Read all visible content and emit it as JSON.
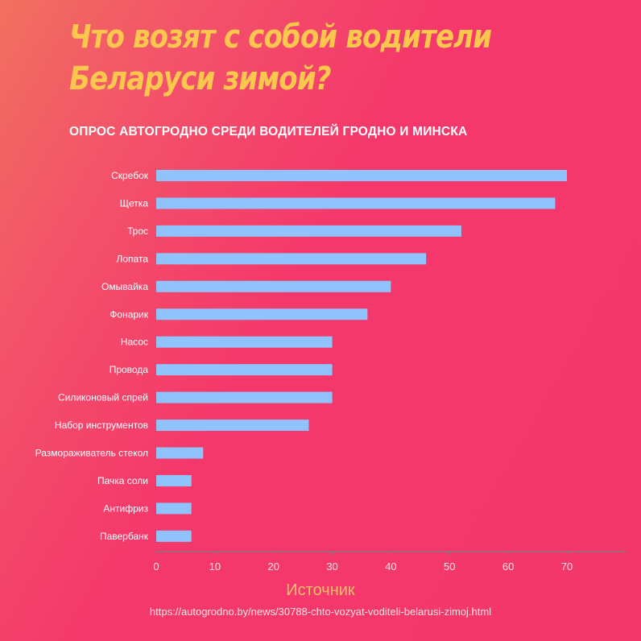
{
  "title": "Что возят с собой водители Беларуси зимой?",
  "source": {
    "heading": "Источник",
    "url": "https://autogrodno.by/news/30788-chto-vozyat-voditeli-belarusi-zimoj.html"
  },
  "colors": {
    "bar": "#90c3fb",
    "title": "#fcc74d",
    "axis": "#8a7480"
  },
  "chart_data": {
    "type": "bar",
    "orientation": "horizontal",
    "title": "ОПРОС АВТОГРОДНО СРЕДИ ВОДИТЕЛЕЙ ГРОДНО И МИНСКА",
    "categories": [
      "Скребок",
      "Щетка",
      "Трос",
      "Лопата",
      "Омывайка",
      "Фонарик",
      "Насос",
      "Провода",
      "Силиконовый спрей",
      "Набор инструментов",
      "Размораживатель стекол",
      "Пачка соли",
      "Антифриз",
      "Павербанк"
    ],
    "values": [
      70,
      68,
      52,
      46,
      40,
      36,
      30,
      30,
      30,
      26,
      8,
      6,
      6,
      6
    ],
    "xlim": [
      0,
      80
    ],
    "xticks": [
      0,
      10,
      20,
      30,
      40,
      50,
      60,
      70
    ],
    "grid": false
  }
}
